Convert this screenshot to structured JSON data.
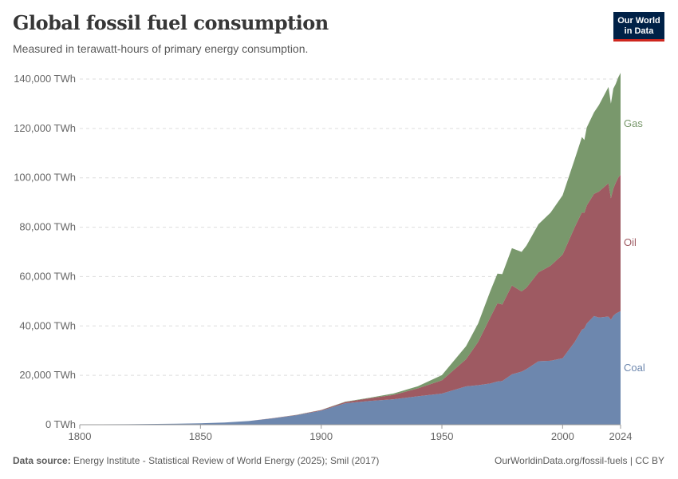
{
  "header": {
    "title": "Global fossil fuel consumption",
    "subtitle": "Measured in terawatt-hours of primary energy consumption.",
    "logo": "Our World in Data"
  },
  "footer": {
    "source_label": "Data source:",
    "source": "Energy Institute - Statistical Review of World Energy (2025); Smil (2017)",
    "url": "OurWorldinData.org/fossil-fuels | CC BY"
  },
  "chart_data": {
    "type": "area",
    "stacked": true,
    "title": "Global fossil fuel consumption",
    "subtitle": "Measured in terawatt-hours of primary energy consumption.",
    "xlim": [
      1800,
      2024
    ],
    "ylim": [
      0,
      140000
    ],
    "grid": "horizontal dashed",
    "legend": "inline-right",
    "x_ticks": [
      "1800",
      "1850",
      "1900",
      "1950",
      "2000",
      "2024"
    ],
    "y_ticks": [
      "0 TWh",
      "20,000 TWh",
      "40,000 TWh",
      "60,000 TWh",
      "80,000 TWh",
      "100,000 TWh",
      "120,000 TWh",
      "140,000 TWh"
    ],
    "x": [
      1800,
      1820,
      1840,
      1850,
      1860,
      1870,
      1880,
      1890,
      1900,
      1910,
      1920,
      1930,
      1940,
      1950,
      1960,
      1965,
      1970,
      1973,
      1975,
      1979,
      1983,
      1985,
      1990,
      1995,
      2000,
      2005,
      2008,
      2009,
      2010,
      2013,
      2015,
      2019,
      2020,
      2021,
      2022,
      2023,
      2024
    ],
    "series": [
      {
        "name": "Coal",
        "color": "#6d87ae",
        "values": [
          97,
          200,
          400,
          570,
          900,
          1500,
          2600,
          3900,
          5700,
          8700,
          9600,
          10300,
          11500,
          12600,
          15500,
          16000,
          16700,
          17500,
          17700,
          20400,
          21500,
          22500,
          25700,
          25900,
          26900,
          33500,
          38500,
          39000,
          41000,
          44000,
          43400,
          43800,
          42500,
          44100,
          45000,
          45500,
          46000
        ]
      },
      {
        "name": "Oil",
        "color": "#9e5a62",
        "values": [
          0,
          0,
          0,
          0,
          0,
          5,
          50,
          120,
          230,
          500,
          1100,
          1800,
          3200,
          5400,
          11000,
          17500,
          26700,
          31700,
          31000,
          36000,
          32500,
          33000,
          36000,
          38500,
          42000,
          46500,
          47500,
          46800,
          47800,
          49500,
          51000,
          54000,
          49200,
          51500,
          53000,
          54500,
          55300
        ]
      },
      {
        "name": "Gas",
        "color": "#79986c",
        "values": [
          0,
          0,
          0,
          0,
          0,
          0,
          20,
          40,
          60,
          150,
          230,
          560,
          870,
          2100,
          5300,
          7500,
          10600,
          12000,
          12300,
          15100,
          16000,
          17000,
          19500,
          21500,
          24000,
          27500,
          30500,
          29500,
          31600,
          33000,
          35000,
          39000,
          38300,
          40500,
          40000,
          40600,
          41200
        ]
      }
    ]
  }
}
